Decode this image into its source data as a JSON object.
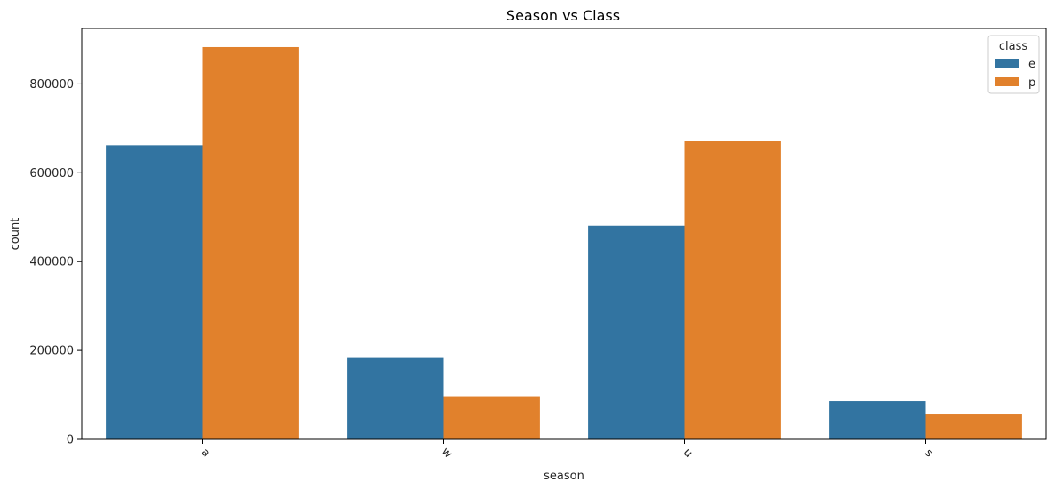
{
  "chart_data": {
    "type": "bar",
    "title": "Season vs Class",
    "xlabel": "season",
    "ylabel": "count",
    "categories": [
      "a",
      "w",
      "u",
      "s"
    ],
    "series": [
      {
        "name": "e",
        "color": "#3274a1",
        "values": [
          662000,
          183000,
          481000,
          86000
        ]
      },
      {
        "name": "p",
        "color": "#e1812c",
        "values": [
          883000,
          97000,
          672000,
          56000
        ]
      }
    ],
    "ylim": [
      0,
      925000
    ],
    "yticks": [
      0,
      200000,
      400000,
      600000,
      800000
    ],
    "legend": {
      "title": "class",
      "placement": "top-right"
    },
    "grid": false
  }
}
